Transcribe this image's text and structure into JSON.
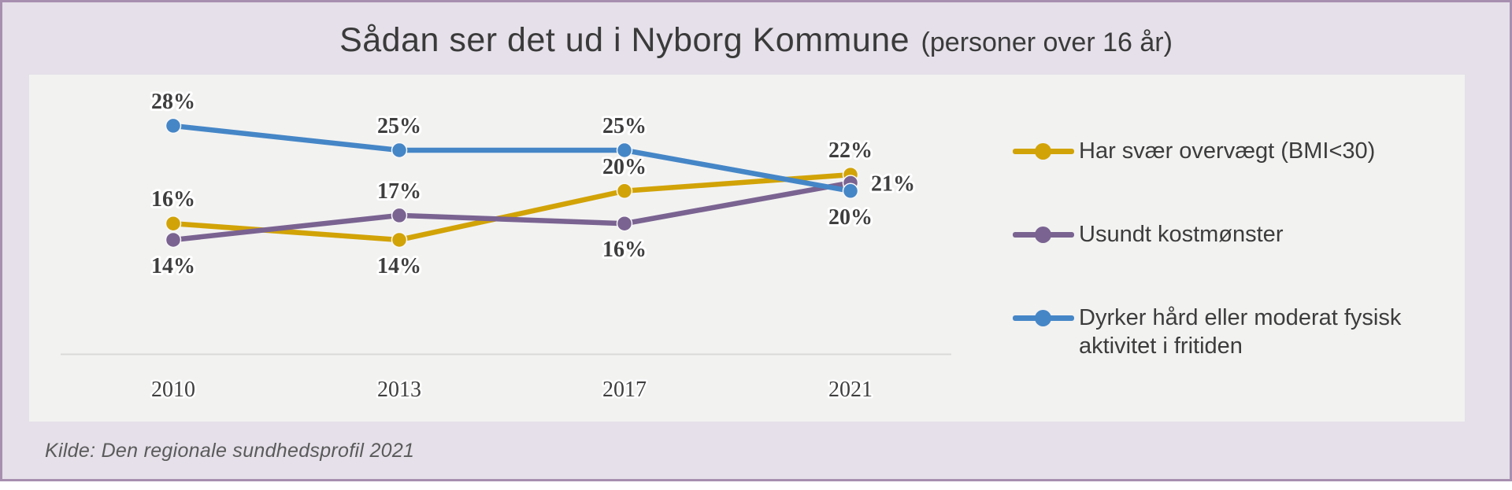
{
  "frame": {
    "title": "Sådan ser det ud i Nyborg Kommune",
    "title_suffix": "(personer over 16 år)",
    "source": "Kilde: Den regionale sundhedsprofil 2021"
  },
  "colors": {
    "frame_bg": "#e5e0e9",
    "frame_border": "#a78fb0",
    "panel_bg": "#f2f2f1",
    "axis_line": "#d9d9d9",
    "text": "#3e3e3e"
  },
  "chart_data": {
    "type": "line",
    "categories": [
      "2010",
      "2013",
      "2017",
      "2021"
    ],
    "series": [
      {
        "name": "Har svær overvægt (BMI<30)",
        "color": "#d2a307",
        "values": [
          16,
          14,
          20,
          22
        ],
        "label_positions": [
          "above",
          "below",
          "above",
          "above"
        ]
      },
      {
        "name": "Usundt kostmønster",
        "color": "#7a6391",
        "values": [
          14,
          17,
          16,
          21
        ],
        "label_positions": [
          "below",
          "above",
          "below",
          "right"
        ]
      },
      {
        "name": "Dyrker hård eller moderat fysisk aktivitet i fritiden",
        "color": "#4586c7",
        "values": [
          28,
          25,
          25,
          20
        ],
        "label_positions": [
          "above",
          "above",
          "above",
          "below"
        ]
      }
    ],
    "value_suffix": "%",
    "ylim": [
      0,
      34
    ],
    "grid": false,
    "legend_position": "right",
    "title": "Sådan ser det ud i Nyborg Kommune (personer over 16 år)"
  }
}
